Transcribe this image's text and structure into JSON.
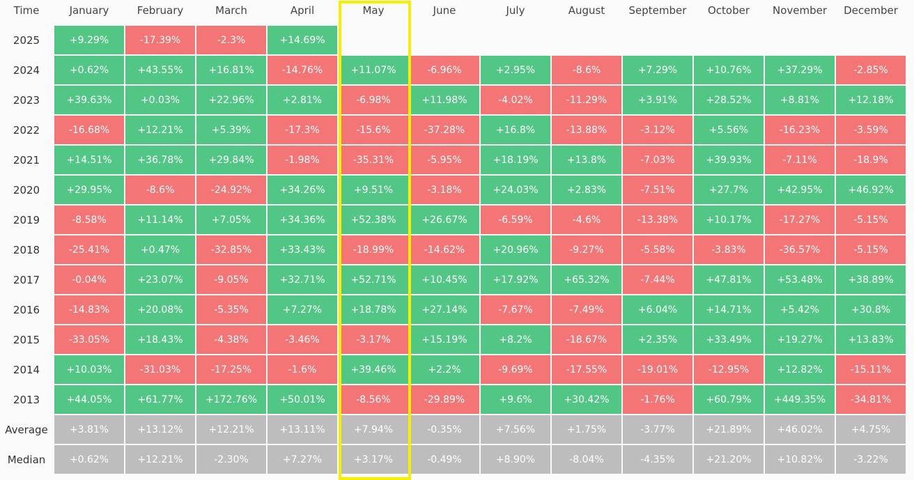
{
  "table": {
    "header": [
      "Time",
      "January",
      "February",
      "March",
      "April",
      "May",
      "June",
      "July",
      "August",
      "September",
      "October",
      "November",
      "December"
    ],
    "rows": [
      {
        "label": "2025",
        "cells": [
          "+9.29%",
          "-17.39%",
          "-2.3%",
          "+14.69%"
        ]
      },
      {
        "label": "2024",
        "cells": [
          "+0.62%",
          "+43.55%",
          "+16.81%",
          "-14.76%",
          "+11.07%",
          "-6.96%",
          "+2.95%",
          "-8.6%",
          "+7.29%",
          "+10.76%",
          "+37.29%",
          "-2.85%"
        ]
      },
      {
        "label": "2023",
        "cells": [
          "+39.63%",
          "+0.03%",
          "+22.96%",
          "+2.81%",
          "-6.98%",
          "+11.98%",
          "-4.02%",
          "-11.29%",
          "+3.91%",
          "+28.52%",
          "+8.81%",
          "+12.18%"
        ]
      },
      {
        "label": "2022",
        "cells": [
          "-16.68%",
          "+12.21%",
          "+5.39%",
          "-17.3%",
          "-15.6%",
          "-37.28%",
          "+16.8%",
          "-13.88%",
          "-3.12%",
          "+5.56%",
          "-16.23%",
          "-3.59%"
        ]
      },
      {
        "label": "2021",
        "cells": [
          "+14.51%",
          "+36.78%",
          "+29.84%",
          "-1.98%",
          "-35.31%",
          "-5.95%",
          "+18.19%",
          "+13.8%",
          "-7.03%",
          "+39.93%",
          "-7.11%",
          "-18.9%"
        ]
      },
      {
        "label": "2020",
        "cells": [
          "+29.95%",
          "-8.6%",
          "-24.92%",
          "+34.26%",
          "+9.51%",
          "-3.18%",
          "+24.03%",
          "+2.83%",
          "-7.51%",
          "+27.7%",
          "+42.95%",
          "+46.92%"
        ]
      },
      {
        "label": "2019",
        "cells": [
          "-8.58%",
          "+11.14%",
          "+7.05%",
          "+34.36%",
          "+52.38%",
          "+26.67%",
          "-6.59%",
          "-4.6%",
          "-13.38%",
          "+10.17%",
          "-17.27%",
          "-5.15%"
        ]
      },
      {
        "label": "2018",
        "cells": [
          "-25.41%",
          "+0.47%",
          "-32.85%",
          "+33.43%",
          "-18.99%",
          "-14.62%",
          "+20.96%",
          "-9.27%",
          "-5.58%",
          "-3.83%",
          "-36.57%",
          "-5.15%"
        ]
      },
      {
        "label": "2017",
        "cells": [
          "-0.04%",
          "+23.07%",
          "-9.05%",
          "+32.71%",
          "+52.71%",
          "+10.45%",
          "+17.92%",
          "+65.32%",
          "-7.44%",
          "+47.81%",
          "+53.48%",
          "+38.89%"
        ]
      },
      {
        "label": "2016",
        "cells": [
          "-14.83%",
          "+20.08%",
          "-5.35%",
          "+7.27%",
          "+18.78%",
          "+27.14%",
          "-7.67%",
          "-7.49%",
          "+6.04%",
          "+14.71%",
          "+5.42%",
          "+30.8%"
        ]
      },
      {
        "label": "2015",
        "cells": [
          "-33.05%",
          "+18.43%",
          "-4.38%",
          "-3.46%",
          "-3.17%",
          "+15.19%",
          "+8.2%",
          "-18.67%",
          "+2.35%",
          "+33.49%",
          "+19.27%",
          "+13.83%"
        ]
      },
      {
        "label": "2014",
        "cells": [
          "+10.03%",
          "-31.03%",
          "-17.25%",
          "-1.6%",
          "+39.46%",
          "+2.2%",
          "-9.69%",
          "-17.55%",
          "-19.01%",
          "-12.95%",
          "+12.82%",
          "-15.11%"
        ]
      },
      {
        "label": "2013",
        "cells": [
          "+44.05%",
          "+61.77%",
          "+172.76%",
          "+50.01%",
          "-8.56%",
          "-29.89%",
          "+9.6%",
          "+30.42%",
          "-1.76%",
          "+60.79%",
          "+449.35%",
          "-34.81%"
        ]
      }
    ],
    "summary_rows": [
      {
        "label": "Average",
        "cells": [
          "+3.81%",
          "+13.12%",
          "+12.21%",
          "+13.11%",
          "+7.94%",
          "-0.35%",
          "+7.56%",
          "+1.75%",
          "-3.77%",
          "+21.89%",
          "+46.02%",
          "+4.75%"
        ]
      },
      {
        "label": "Median",
        "cells": [
          "+0.62%",
          "+12.21%",
          "-2.30%",
          "+7.27%",
          "+3.17%",
          "-0.49%",
          "+8.90%",
          "-8.04%",
          "-4.35%",
          "+21.20%",
          "+10.82%",
          "-3.22%"
        ]
      }
    ]
  }
}
